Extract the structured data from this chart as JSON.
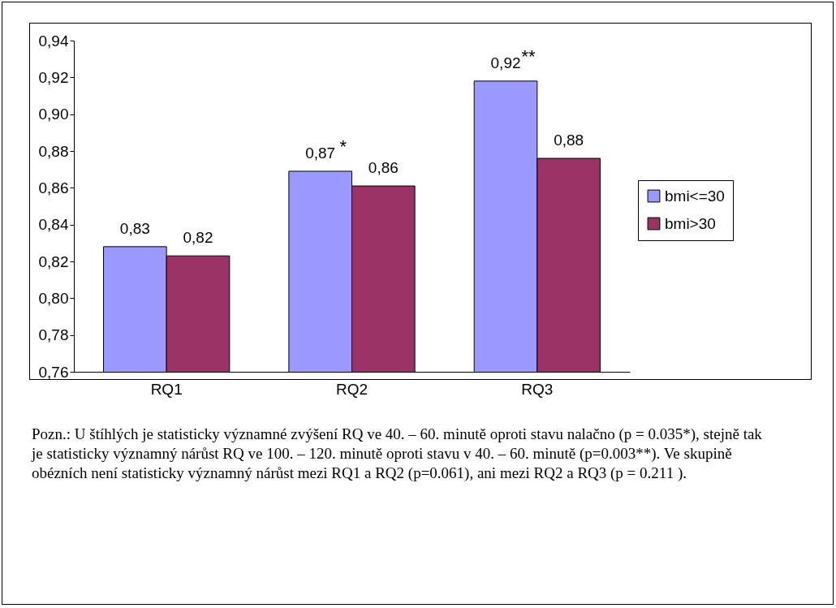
{
  "chart_data": {
    "type": "bar",
    "categories": [
      "RQ1",
      "RQ2",
      "RQ3"
    ],
    "series": [
      {
        "name": "bmi<=30",
        "color": "#9999ff",
        "values": [
          0.828,
          0.869,
          0.918
        ],
        "value_labels": [
          "0,83",
          "0,87",
          "0,92"
        ]
      },
      {
        "name": "bmi>30",
        "color": "#993366",
        "values": [
          0.823,
          0.861,
          0.876
        ],
        "value_labels": [
          "0,82",
          "0,86",
          "0,88"
        ]
      }
    ],
    "ylim": [
      0.76,
      0.94
    ],
    "yticks": [
      {
        "value": 0.76,
        "label": "0,76"
      },
      {
        "value": 0.78,
        "label": "0,78"
      },
      {
        "value": 0.8,
        "label": "0,80"
      },
      {
        "value": 0.82,
        "label": "0,82"
      },
      {
        "value": 0.84,
        "label": "0,84"
      },
      {
        "value": 0.86,
        "label": "0,86"
      },
      {
        "value": 0.88,
        "label": "0,88"
      },
      {
        "value": 0.9,
        "label": "0,90"
      },
      {
        "value": 0.92,
        "label": "0,92"
      },
      {
        "value": 0.94,
        "label": "0,94"
      }
    ],
    "grid": false,
    "legend": "right",
    "annotations": [
      {
        "text": "*",
        "x": "RQ2",
        "y": 0.869
      },
      {
        "text": "**",
        "x": "RQ3",
        "y": 0.918
      },
      "Pozn.: U štíhlých je statisticky významné zvýšení RQ ve 40. – 60. minutě oproti stavu nalačno (p = 0.035*), stejně tak je statisticky významný nárůst RQ ve 100. – 120. minutě oproti stavu v 40. – 60. minutě (p=0.003**). Ve skupině obézních není statisticky významný nárůst mezi RQ1 a RQ2 (p=0.061), ani mezi RQ2 a RQ3 (p = 0.211 )."
    ]
  }
}
